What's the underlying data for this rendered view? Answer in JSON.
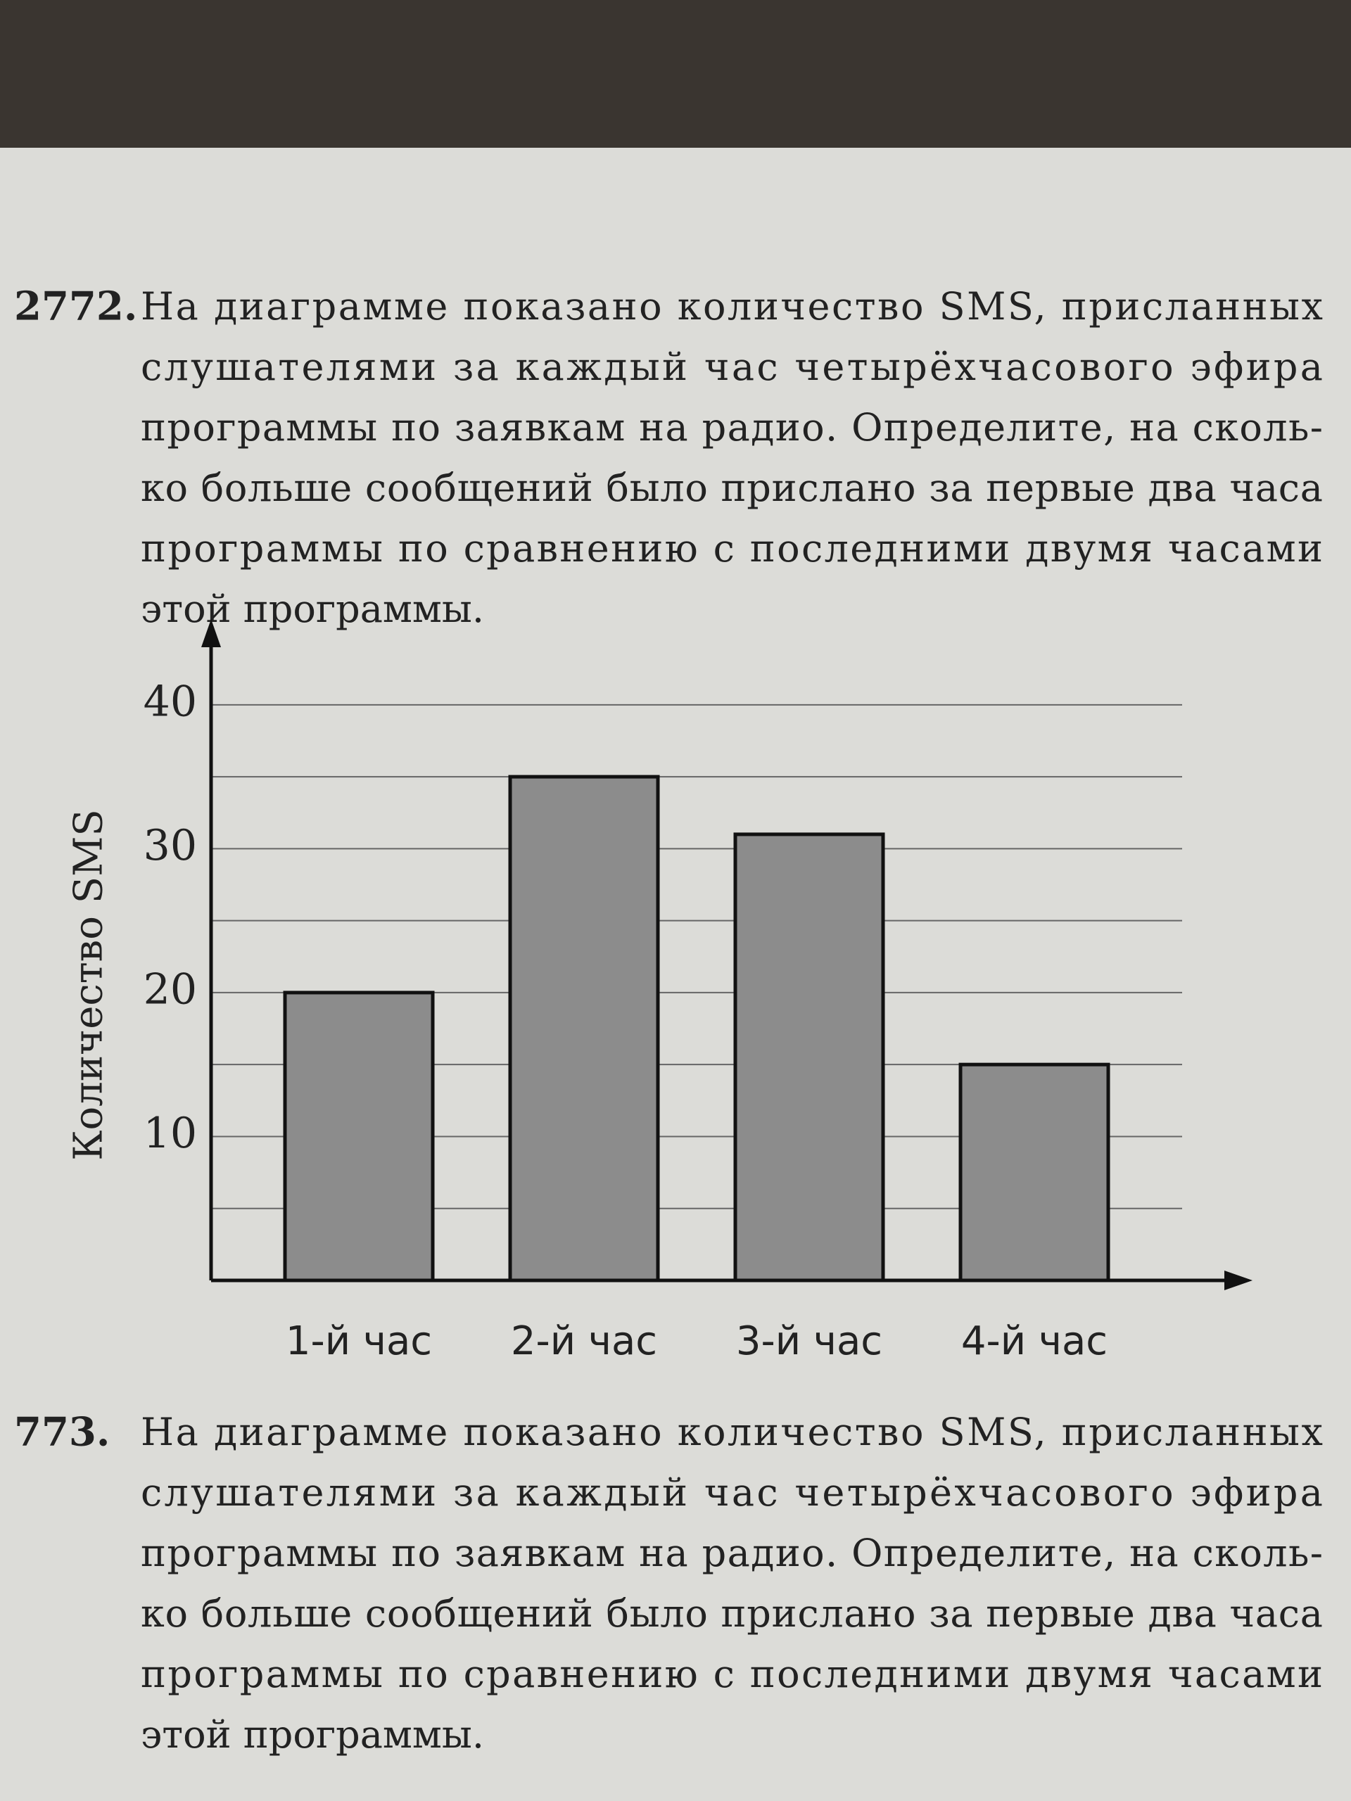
{
  "problems": [
    {
      "number": "2772.",
      "lines": [
        "На диаграмме показано количество SMS, присланных",
        "слушателями за каждый час четырёхчасового эфира",
        "программы по заявкам на радио. Определите, на сколь-",
        "ко больше сообщений было прислано за первые два часа",
        "программы по сравнению с последними двумя часами",
        "этой программы."
      ]
    },
    {
      "number": "773.",
      "lines": [
        "На диаграмме показано количество SMS, присланных",
        "слушателями за каждый час четырёхчасового эфира",
        "программы по заявкам на радио. Определите, на сколь-",
        "ко больше сообщений было прислано за первые два часа",
        "программы по сравнению с последними двумя часами",
        "этой программы."
      ]
    }
  ],
  "chart_data": {
    "type": "bar",
    "y_label": "Количество SMS",
    "categories": [
      "1-й час",
      "2-й час",
      "3-й час",
      "4-й час"
    ],
    "values": [
      20,
      35,
      31,
      15
    ],
    "color": "#8c8c8c",
    "ylim": [
      0,
      44
    ],
    "yticks": [
      10,
      20,
      30,
      40
    ],
    "minor_yticks": [
      5,
      15,
      25,
      35
    ],
    "grid": true
  }
}
